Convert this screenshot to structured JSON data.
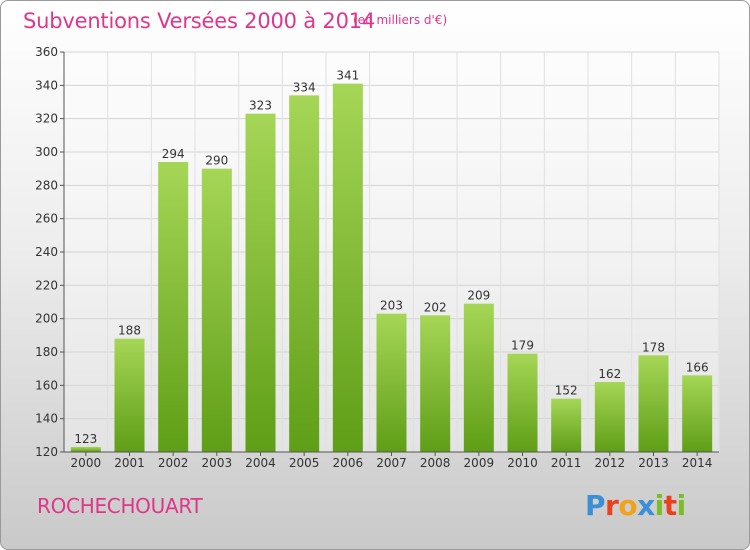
{
  "chart_data": {
    "type": "bar",
    "title": "Subventions Versées 2000 à 2014",
    "subtitle": "(en milliers d'€)",
    "categories": [
      "2000",
      "2001",
      "2002",
      "2003",
      "2004",
      "2005",
      "2006",
      "2007",
      "2008",
      "2009",
      "2010",
      "2011",
      "2012",
      "2013",
      "2014"
    ],
    "values": [
      123,
      188,
      294,
      290,
      323,
      334,
      341,
      203,
      202,
      209,
      179,
      152,
      162,
      178,
      166
    ],
    "xlabel": "",
    "ylabel": "",
    "ylim": [
      120,
      360
    ],
    "yticks": [
      120,
      140,
      160,
      180,
      200,
      220,
      240,
      260,
      280,
      300,
      320,
      340,
      360
    ],
    "grid": true,
    "bar_color": "#8cc63f"
  },
  "footer": {
    "town": "ROCHECHOUART",
    "logo_letters": [
      {
        "ch": "P",
        "color": "#3a8fd6"
      },
      {
        "ch": "r",
        "color": "#e8411c"
      },
      {
        "ch": "o",
        "color": "#f0a21a"
      },
      {
        "ch": "x",
        "color": "#3a8fd6"
      },
      {
        "ch": "i",
        "color": "#7bbf26"
      },
      {
        "ch": "t",
        "color": "#e8411c"
      },
      {
        "ch": "i",
        "color": "#7bbf26"
      }
    ]
  }
}
